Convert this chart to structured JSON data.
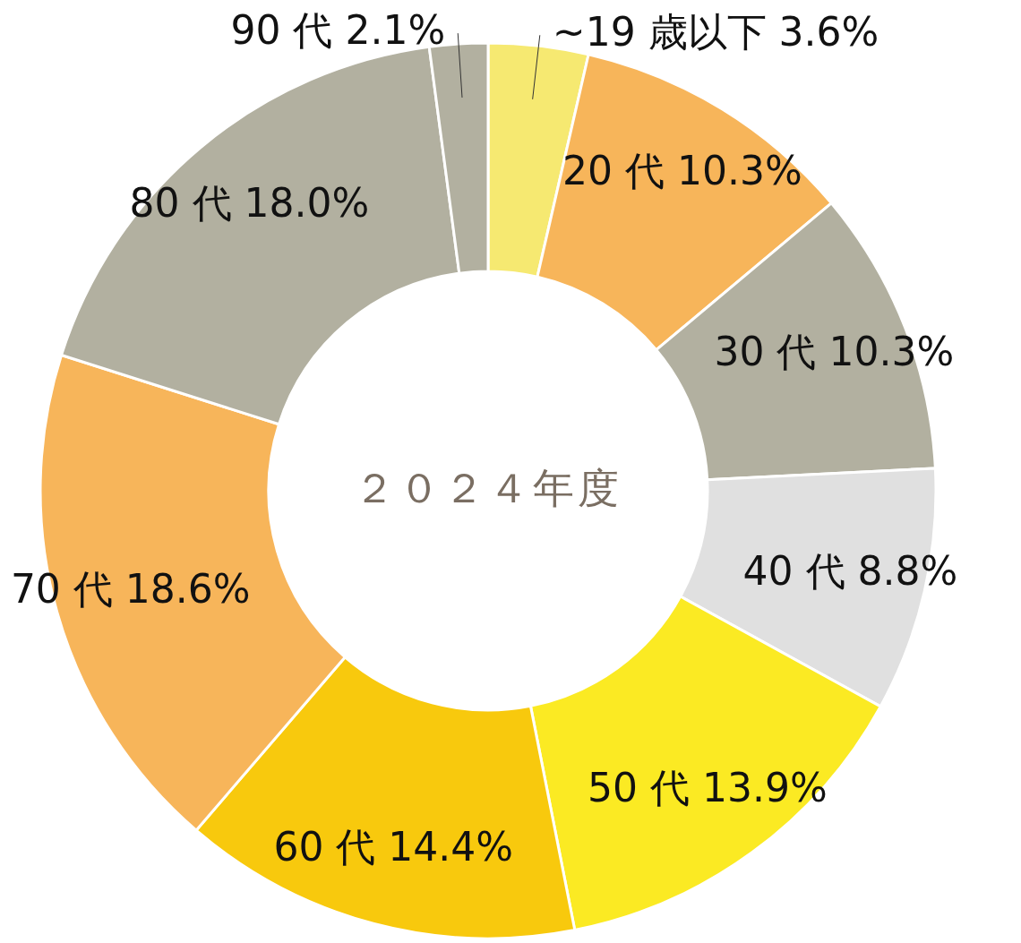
{
  "chart_data": {
    "type": "donut",
    "title": "２０２４年度",
    "categories": [
      "~19 歳以下",
      "20 代",
      "30 代",
      "40 代",
      "50 代",
      "60 代",
      "70 代",
      "80 代",
      "90 代"
    ],
    "values": [
      3.6,
      10.3,
      10.3,
      8.8,
      13.9,
      14.4,
      18.6,
      18.0,
      2.1
    ],
    "value_labels": [
      "3.6%",
      "10.3%",
      "10.3%",
      "8.8%",
      "13.9%",
      "14.4%",
      "18.6%",
      "18.0%",
      "2.1%"
    ],
    "colors": [
      "#f6e971",
      "#f7b55a",
      "#b2b0a0",
      "#e0e0e0",
      "#fbea23",
      "#f8c90d",
      "#f7b55a",
      "#b2b0a0",
      "#b2b0a0"
    ]
  }
}
